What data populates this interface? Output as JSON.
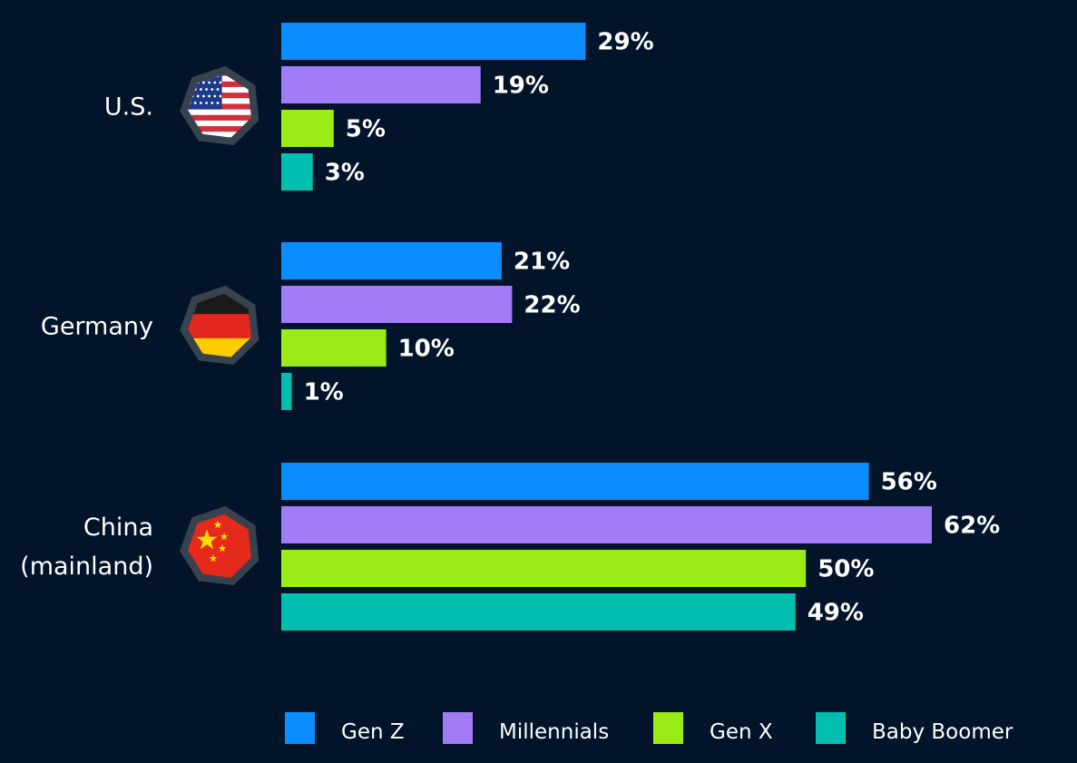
{
  "chart_data": {
    "type": "bar",
    "orientation": "horizontal",
    "categories": [
      {
        "lines": [
          "U.S."
        ],
        "flag_icon": "us-flag-icon"
      },
      {
        "lines": [
          "Germany"
        ],
        "flag_icon": "germany-flag-icon"
      },
      {
        "lines": [
          "China",
          "(mainland)"
        ],
        "flag_icon": "china-flag-icon"
      }
    ],
    "series": [
      {
        "name": "Gen Z",
        "color": "#0c8dff",
        "values": [
          29,
          21,
          56
        ],
        "labels": [
          "29%",
          "21%",
          "56%"
        ]
      },
      {
        "name": "Millennials",
        "color": "#a27bf7",
        "values": [
          19,
          22,
          62
        ],
        "labels": [
          "19%",
          "22%",
          "62%"
        ]
      },
      {
        "name": "Gen X",
        "color": "#9bec16",
        "values": [
          5,
          10,
          50
        ],
        "labels": [
          "5%",
          "10%",
          "50%"
        ]
      },
      {
        "name": "Baby Boomer",
        "color": "#00bfae",
        "values": [
          3,
          1,
          49
        ],
        "labels": [
          "3%",
          "1%",
          "49%"
        ]
      }
    ],
    "unit": "%",
    "xlim": [
      0,
      62
    ],
    "grid": false,
    "legend_position": "bottom-right",
    "colors": {
      "background": "#011429",
      "text": "#ffffff",
      "flag_badge": "#38424f"
    }
  }
}
